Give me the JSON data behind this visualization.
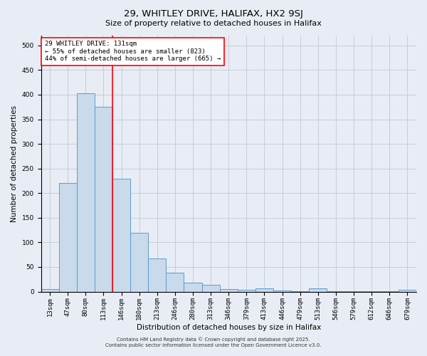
{
  "title_line1": "29, WHITLEY DRIVE, HALIFAX, HX2 9SJ",
  "title_line2": "Size of property relative to detached houses in Halifax",
  "xlabel": "Distribution of detached houses by size in Halifax",
  "ylabel": "Number of detached properties",
  "categories": [
    "13sqm",
    "47sqm",
    "80sqm",
    "113sqm",
    "146sqm",
    "180sqm",
    "213sqm",
    "246sqm",
    "280sqm",
    "313sqm",
    "346sqm",
    "379sqm",
    "413sqm",
    "446sqm",
    "479sqm",
    "513sqm",
    "546sqm",
    "579sqm",
    "612sqm",
    "646sqm",
    "679sqm"
  ],
  "values": [
    5,
    220,
    403,
    375,
    230,
    120,
    68,
    38,
    18,
    14,
    5,
    3,
    6,
    2,
    1,
    6,
    1,
    1,
    1,
    1,
    3
  ],
  "bar_color": "#c9daea",
  "bar_edge_color": "#5b9bd5",
  "vline_color": "red",
  "annotation_text": "29 WHITLEY DRIVE: 131sqm\n← 55% of detached houses are smaller (823)\n44% of semi-detached houses are larger (665) →",
  "annotation_box_color": "white",
  "annotation_box_edge_color": "red",
  "ylim": [
    0,
    520
  ],
  "yticks": [
    0,
    50,
    100,
    150,
    200,
    250,
    300,
    350,
    400,
    450,
    500
  ],
  "grid_color": "#c0c8d8",
  "background_color": "#e8edf5",
  "footer_line1": "Contains HM Land Registry data © Crown copyright and database right 2025.",
  "footer_line2": "Contains public sector information licensed under the Open Government Licence v3.0.",
  "title1_fontsize": 9.5,
  "title2_fontsize": 8.0,
  "xlabel_fontsize": 7.5,
  "ylabel_fontsize": 7.5,
  "tick_fontsize": 6.5,
  "annotation_fontsize": 6.5,
  "footer_fontsize": 5.0
}
